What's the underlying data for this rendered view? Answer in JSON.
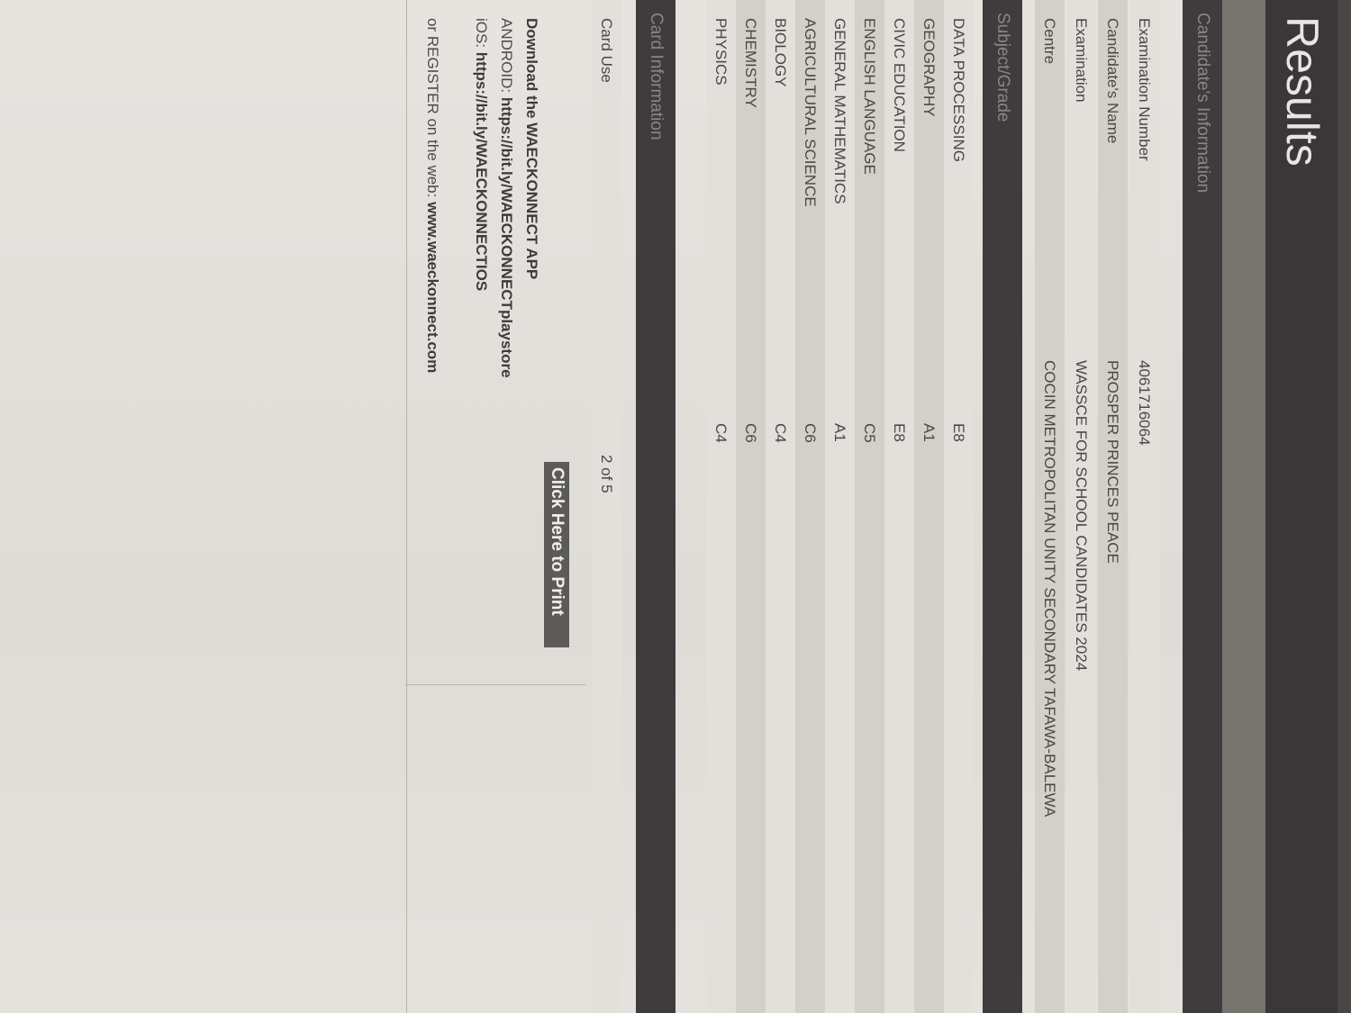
{
  "header": {
    "title": "Results"
  },
  "candidate_section": {
    "title": "Candidate's Information",
    "rows": [
      {
        "label": "Examination Number",
        "value": "4061716064"
      },
      {
        "label": "Candidate's Name",
        "value": "PROSPER PRINCES PEACE"
      },
      {
        "label": "Examination",
        "value": "WASSCE FOR SCHOOL CANDIDATES 2024"
      },
      {
        "label": "Centre",
        "value": "COCIN METROPOLITAN UNITY SECONDARY TAFAWA-BALEWA"
      }
    ]
  },
  "subject_section": {
    "title": "Subject/Grade",
    "rows": [
      {
        "subject": "DATA PROCESSING",
        "grade": "E8"
      },
      {
        "subject": "GEOGRAPHY",
        "grade": "A1"
      },
      {
        "subject": "CIVIC EDUCATION",
        "grade": "E8"
      },
      {
        "subject": "ENGLISH LANGUAGE",
        "grade": "C5"
      },
      {
        "subject": "GENERAL MATHEMATICS",
        "grade": "A1"
      },
      {
        "subject": "AGRICULTURAL SCIENCE",
        "grade": "C6"
      },
      {
        "subject": "BIOLOGY",
        "grade": "C4"
      },
      {
        "subject": "CHEMISTRY",
        "grade": "C6"
      },
      {
        "subject": "PHYSICS",
        "grade": "C4"
      }
    ]
  },
  "card_section": {
    "title": "Card Information",
    "rows": [
      {
        "label": "Card Use",
        "value": "2 of 5"
      }
    ]
  },
  "print_button": "Click Here to Print",
  "download": {
    "heading_prefix": "Download the ",
    "heading_bold": "WAECKONNECT APP",
    "android_label": "ANDROID: ",
    "android_link": "https://bit.ly/WAECKONNECTplaystore",
    "ios_label": "iOS: ",
    "ios_link": "https://bit.ly/WAECKONNECTIOS",
    "register_prefix": "or REGISTER on the web: ",
    "register_link": "www.waeckonnect.com"
  }
}
